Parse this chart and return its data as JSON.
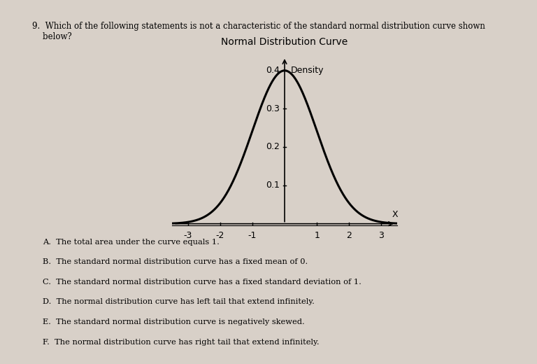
{
  "title": "Normal Distribution Curve",
  "ylabel": "Density",
  "xlabel": "X",
  "xlim": [
    -3.5,
    3.5
  ],
  "ylim": [
    -0.005,
    0.45
  ],
  "xticks": [
    -3,
    -2,
    -1,
    1,
    2,
    3
  ],
  "yticks": [
    0.1,
    0.2,
    0.3,
    0.4
  ],
  "curve_color": "#000000",
  "curve_linewidth": 2.2,
  "background_color": "#d8d0c8",
  "question_text": "9.  Which of the following statements is not a characteristic of the standard normal distribution curve shown\n    below?",
  "options": [
    "A.  The total area under the curve equals 1.",
    "B.  The standard normal distribution curve has a fixed mean of 0.",
    "C.  The standard normal distribution curve has a fixed standard deviation of 1.",
    "D.  The normal distribution curve has left tail that extend infinitely.",
    "E.  The standard normal distribution curve is negatively skewed.",
    "F.  The normal distribution curve has right tail that extend infinitely."
  ],
  "mean": 0,
  "std": 1
}
